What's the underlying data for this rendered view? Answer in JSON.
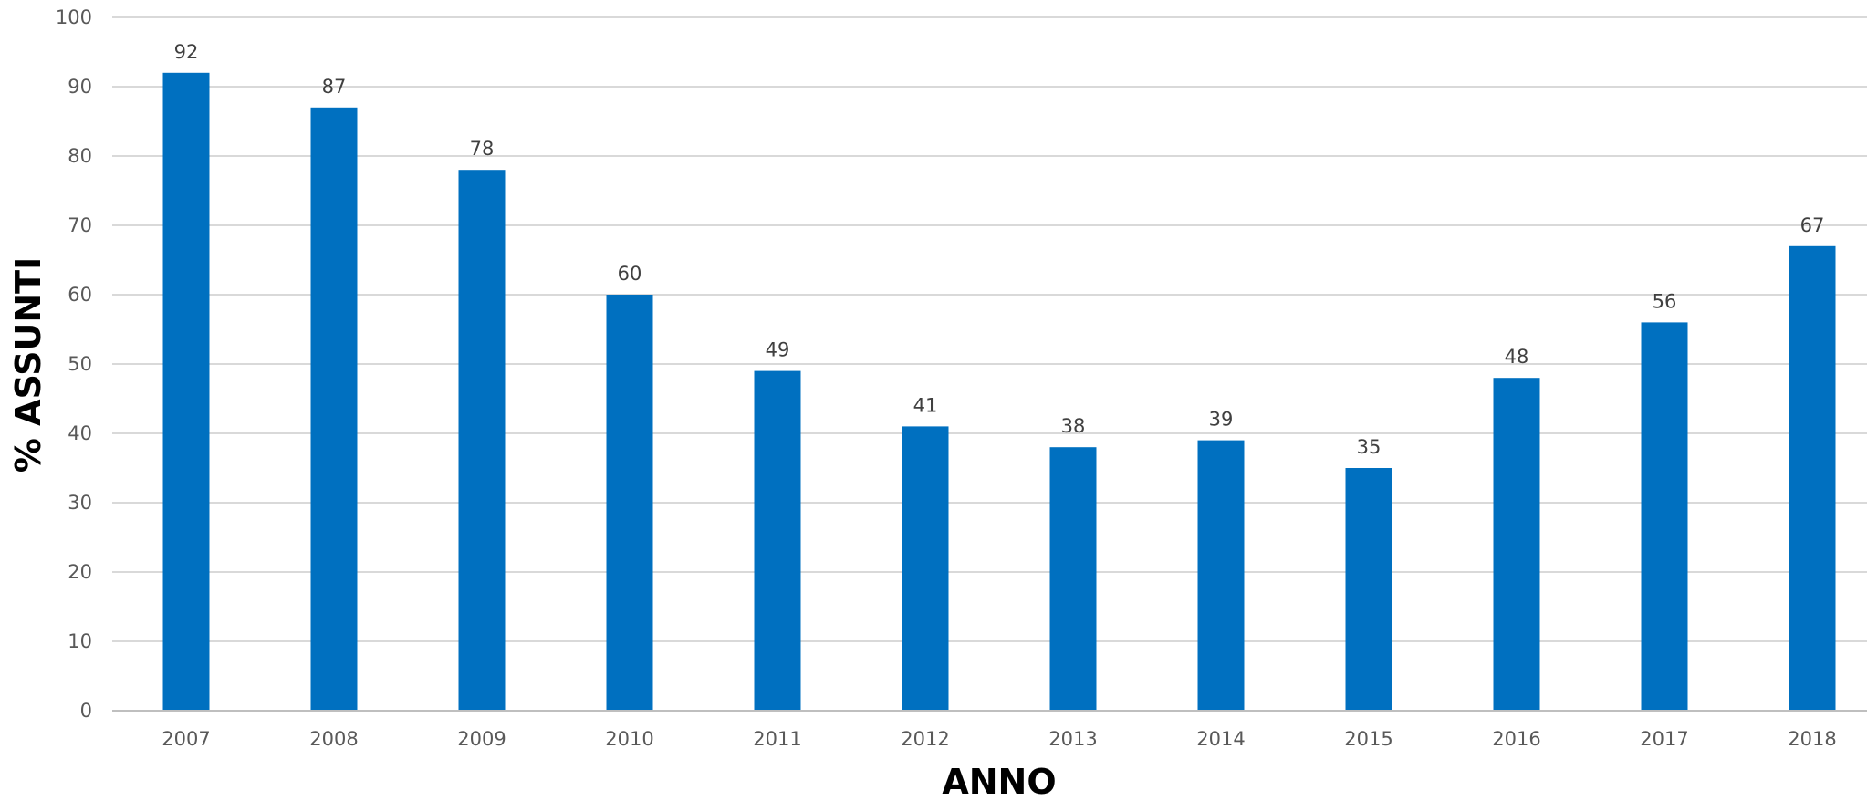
{
  "chart_data": {
    "type": "bar",
    "categories": [
      "2007",
      "2008",
      "2009",
      "2010",
      "2011",
      "2012",
      "2013",
      "2014",
      "2015",
      "2016",
      "2017",
      "2018"
    ],
    "values": [
      92,
      87,
      78,
      60,
      49,
      41,
      38,
      39,
      35,
      48,
      56,
      67
    ],
    "xlabel": "ANNO",
    "ylabel": "% ASSUNTI",
    "ylim": [
      0,
      100
    ],
    "yticks": [
      0,
      10,
      20,
      30,
      40,
      50,
      60,
      70,
      80,
      90,
      100
    ],
    "grid": true,
    "data_labels": true,
    "legend": "none",
    "bar_color": "#0070C0"
  }
}
